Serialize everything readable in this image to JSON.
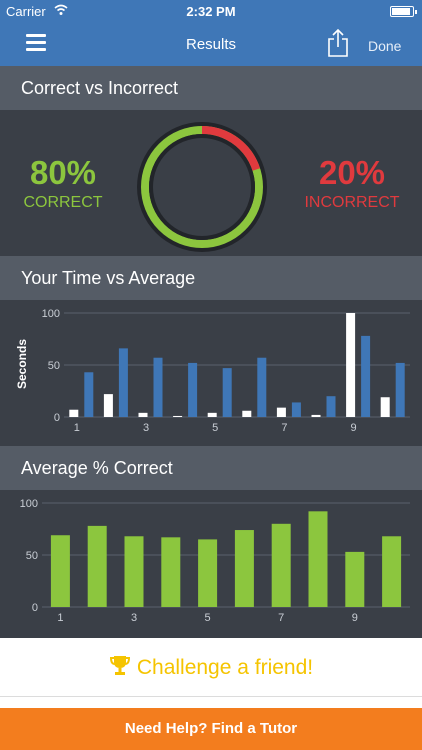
{
  "status_bar": {
    "carrier": "Carrier",
    "time": "2:32 PM"
  },
  "nav": {
    "title": "Results",
    "done_label": "Done"
  },
  "correct_section": {
    "title": "Correct vs Incorrect",
    "correct_pct": "80%",
    "correct_label": "CORRECT",
    "incorrect_pct": "20%",
    "incorrect_label": "INCORRECT",
    "correct_fraction": 0.8,
    "colors": {
      "correct": "#8cc63e",
      "incorrect": "#e03a3e"
    }
  },
  "time_section": {
    "title": "Your Time vs Average"
  },
  "avg_section": {
    "title": "Average % Correct"
  },
  "cta": {
    "challenge_label": "Challenge a friend!"
  },
  "help": {
    "label": "Need Help?  Find a Tutor"
  },
  "chart_data": [
    {
      "type": "bar",
      "ylabel": "Seconds",
      "ylim": [
        0,
        100
      ],
      "yticks": [
        0,
        50,
        100
      ],
      "categories": [
        "1",
        "2",
        "3",
        "4",
        "5",
        "6",
        "7",
        "8",
        "9",
        "10"
      ],
      "xtick_labels": [
        "1",
        "3",
        "5",
        "7",
        "9"
      ],
      "grid": true,
      "series": [
        {
          "values": [
            7,
            22,
            4,
            1,
            4,
            6,
            9,
            2,
            100,
            19
          ],
          "color": "#ffffff"
        },
        {
          "values": [
            43,
            66,
            57,
            52,
            47,
            57,
            14,
            20,
            78,
            52
          ],
          "color": "#3f77b7"
        }
      ]
    },
    {
      "type": "bar",
      "ylim": [
        0,
        100
      ],
      "yticks": [
        0,
        50,
        100
      ],
      "categories": [
        "1",
        "2",
        "3",
        "4",
        "5",
        "6",
        "7",
        "8",
        "9",
        "10"
      ],
      "xtick_labels": [
        "1",
        "3",
        "5",
        "7",
        "9"
      ],
      "grid": true,
      "series": [
        {
          "values": [
            69,
            78,
            68,
            67,
            65,
            74,
            80,
            92,
            53,
            68
          ],
          "color": "#8cc63e"
        }
      ]
    }
  ]
}
